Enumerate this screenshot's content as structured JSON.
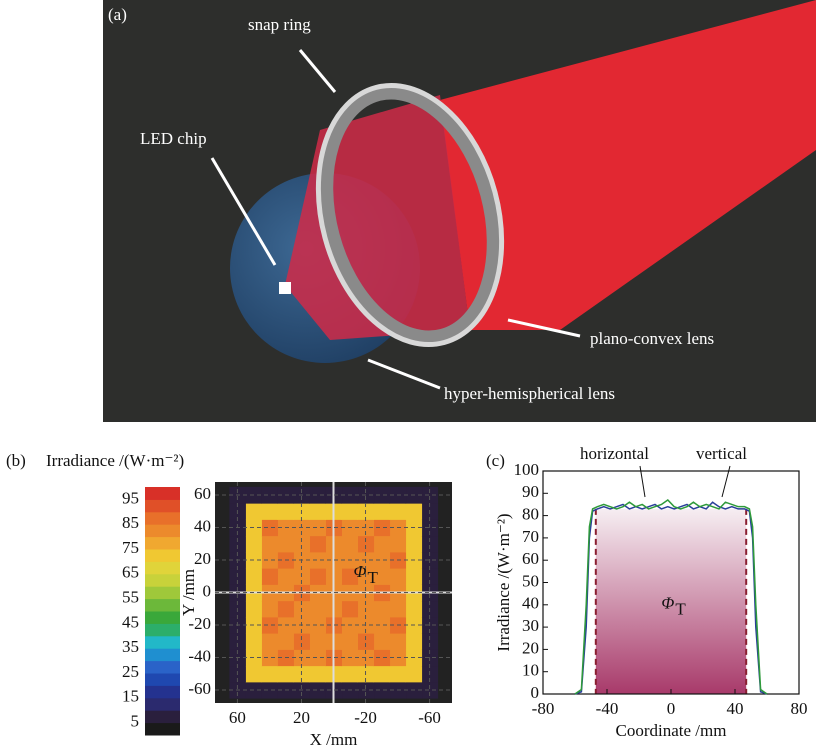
{
  "panel_a": {
    "label": "(a)",
    "annotations": [
      "snap ring",
      "LED chip",
      "plano-convex lens",
      "hyper-hemispherical lens"
    ]
  },
  "chart_data": [
    {
      "type": "heatmap",
      "panel_label": "(b)",
      "colorbar_title": "Irradiance /(W·m⁻²)",
      "zlim": [
        0,
        100
      ],
      "zticks": [
        5,
        15,
        25,
        35,
        45,
        55,
        65,
        75,
        85,
        95
      ],
      "colors": [
        "#1a1a1a",
        "#2a1f3d",
        "#2b2a6e",
        "#24328f",
        "#1f48b0",
        "#2a63c8",
        "#1f8fd0",
        "#22b8c8",
        "#2cae6a",
        "#3aa83a",
        "#6cb83a",
        "#9fc83a",
        "#c8d23a",
        "#e0d43a",
        "#f0c832",
        "#f0a830",
        "#ec8a2c",
        "#e8702a",
        "#e05028",
        "#d83028"
      ],
      "xlabel": "X /mm",
      "ylabel": "Y /mm",
      "xlim": [
        74,
        -74
      ],
      "ylim": [
        -68,
        68
      ],
      "xticks": [
        60,
        20,
        -20,
        -60
      ],
      "yticks": [
        -60,
        -40,
        -20,
        0,
        20,
        40,
        60
      ],
      "grid": true,
      "annotation": {
        "symbol": "Φ",
        "subscript": "T"
      },
      "x": [
        -60,
        -50,
        -40,
        -30,
        -20,
        -10,
        0,
        10,
        20,
        30,
        40,
        50,
        60
      ],
      "y": [
        -60,
        -50,
        -40,
        -30,
        -20,
        -10,
        0,
        10,
        20,
        30,
        40,
        50,
        60
      ],
      "z": [
        [
          8,
          8,
          8,
          8,
          8,
          8,
          8,
          8,
          8,
          8,
          8,
          8,
          8
        ],
        [
          8,
          70,
          70,
          70,
          70,
          70,
          70,
          70,
          70,
          70,
          70,
          70,
          8
        ],
        [
          8,
          70,
          84,
          86,
          84,
          84,
          86,
          84,
          84,
          86,
          84,
          70,
          8
        ],
        [
          8,
          70,
          84,
          84,
          86,
          84,
          84,
          84,
          86,
          84,
          84,
          70,
          8
        ],
        [
          8,
          70,
          86,
          84,
          84,
          84,
          86,
          84,
          84,
          84,
          86,
          70,
          8
        ],
        [
          8,
          70,
          84,
          84,
          84,
          86,
          84,
          84,
          84,
          86,
          84,
          70,
          8
        ],
        [
          8,
          70,
          84,
          86,
          84,
          84,
          84,
          84,
          86,
          84,
          84,
          70,
          8
        ],
        [
          8,
          70,
          84,
          84,
          84,
          86,
          84,
          86,
          84,
          84,
          86,
          70,
          8
        ],
        [
          8,
          70,
          86,
          84,
          84,
          84,
          84,
          84,
          84,
          86,
          84,
          70,
          8
        ],
        [
          8,
          70,
          84,
          84,
          86,
          84,
          84,
          86,
          84,
          84,
          84,
          70,
          8
        ],
        [
          8,
          70,
          84,
          86,
          84,
          84,
          86,
          84,
          84,
          84,
          86,
          70,
          8
        ],
        [
          8,
          70,
          70,
          70,
          70,
          70,
          70,
          70,
          70,
          70,
          70,
          70,
          8
        ],
        [
          8,
          8,
          8,
          8,
          8,
          8,
          8,
          8,
          8,
          8,
          8,
          8,
          8
        ]
      ]
    },
    {
      "type": "line",
      "panel_label": "(c)",
      "xlabel": "Coordinate /mm",
      "ylabel": "Irradiance /(W·m⁻²)",
      "xlim": [
        -80,
        80
      ],
      "xticks": [
        -80,
        -40,
        0,
        40,
        80
      ],
      "ylim": [
        0,
        100
      ],
      "yticks": [
        0,
        10,
        20,
        30,
        40,
        50,
        60,
        70,
        80,
        90,
        100
      ],
      "shaded_region": [
        -47,
        47
      ],
      "annotation": {
        "symbol": "Φ",
        "subscript": "T"
      },
      "x": [
        -60,
        -56,
        -53,
        -51,
        -49,
        -46,
        -42,
        -38,
        -34,
        -30,
        -26,
        -22,
        -18,
        -14,
        -10,
        -6,
        -2,
        2,
        6,
        10,
        14,
        18,
        22,
        26,
        30,
        34,
        38,
        42,
        46,
        49,
        51,
        53,
        56,
        60
      ],
      "series": [
        {
          "name": "horizontal",
          "color": "#2a3f9a",
          "values": [
            0,
            1,
            30,
            70,
            82,
            83,
            84,
            83,
            84,
            85,
            83,
            84,
            83,
            84,
            85,
            83,
            84,
            83,
            84,
            85,
            83,
            84,
            83,
            86,
            84,
            83,
            84,
            83,
            83,
            82,
            70,
            30,
            1,
            0
          ]
        },
        {
          "name": "vertical",
          "color": "#2e9a3a",
          "values": [
            0,
            2,
            40,
            75,
            83,
            84,
            85,
            84,
            83,
            84,
            86,
            84,
            85,
            83,
            84,
            85,
            87,
            84,
            83,
            84,
            86,
            84,
            85,
            84,
            83,
            86,
            85,
            84,
            84,
            83,
            75,
            40,
            2,
            0
          ]
        }
      ]
    }
  ]
}
